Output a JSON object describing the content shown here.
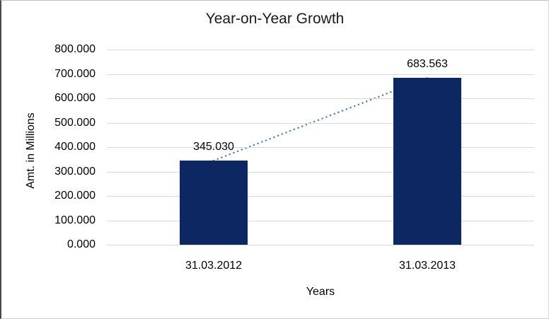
{
  "chart_data": {
    "type": "bar",
    "title": "Year-on-Year Growth",
    "categories": [
      "31.03.2012",
      "31.03.2013"
    ],
    "values": [
      345.03,
      683.563
    ],
    "value_labels": [
      "345.030",
      "683.563"
    ],
    "xlabel": "Years",
    "ylabel": "Amt. in Millions",
    "ylim": [
      0,
      800
    ],
    "ytick_step": 100,
    "ytick_decimals": 3,
    "grid": true,
    "legend": "none",
    "bar_color": "#0d2763",
    "gridline_color": "#d9d9d9",
    "text_color": "#000000",
    "trendline": {
      "style": "dotted",
      "color": "#4a7ebb",
      "connects": [
        "31.03.2012",
        "31.03.2013"
      ]
    }
  }
}
